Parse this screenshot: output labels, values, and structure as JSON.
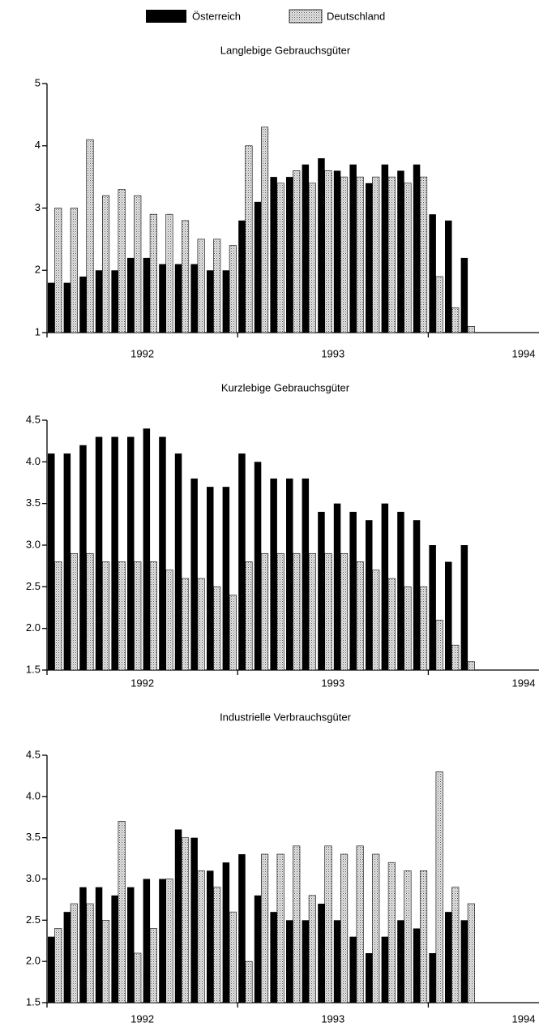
{
  "chart_data": [
    {
      "type": "bar",
      "title": "Langlebige Gebrauchsgüter",
      "categories": [
        null,
        null,
        null,
        null,
        null,
        null,
        null,
        null,
        null,
        null,
        null,
        null,
        null,
        null,
        null,
        null,
        null,
        null,
        null,
        null,
        null,
        null,
        null,
        null,
        null,
        null,
        null
      ],
      "year_labels": [
        "1992",
        "1993",
        "1994"
      ],
      "series": [
        {
          "name": "Österreich",
          "color": "#000000",
          "values": [
            1.8,
            1.8,
            1.9,
            2.0,
            2.0,
            2.2,
            2.2,
            2.1,
            2.1,
            2.1,
            2.0,
            2.0,
            2.8,
            3.1,
            3.5,
            3.5,
            3.7,
            3.8,
            3.6,
            3.7,
            3.4,
            3.7,
            3.6,
            3.7,
            2.9,
            2.8,
            2.2
          ]
        },
        {
          "name": "Deutschland",
          "color": "#c8c8c8",
          "values": [
            3.0,
            3.0,
            4.1,
            3.2,
            3.3,
            3.2,
            2.9,
            2.9,
            2.8,
            2.5,
            2.5,
            2.4,
            4.0,
            4.3,
            3.4,
            3.6,
            3.4,
            3.6,
            3.5,
            3.5,
            3.5,
            3.5,
            3.4,
            3.5,
            1.9,
            1.4,
            1.1
          ]
        }
      ],
      "ylim": [
        1,
        5
      ],
      "yticks": [
        1,
        2,
        3,
        4,
        5
      ]
    },
    {
      "type": "bar",
      "title": "Kurzlebige Gebrauchsgüter",
      "categories": [
        null,
        null,
        null,
        null,
        null,
        null,
        null,
        null,
        null,
        null,
        null,
        null,
        null,
        null,
        null,
        null,
        null,
        null,
        null,
        null,
        null,
        null,
        null,
        null,
        null,
        null,
        null
      ],
      "year_labels": [
        "1992",
        "1993",
        "1994"
      ],
      "series": [
        {
          "name": "Österreich",
          "color": "#000000",
          "values": [
            4.1,
            4.1,
            4.2,
            4.3,
            4.3,
            4.3,
            4.4,
            4.3,
            4.1,
            3.8,
            3.7,
            3.7,
            4.1,
            4.0,
            3.8,
            3.8,
            3.8,
            3.4,
            3.5,
            3.4,
            3.3,
            3.5,
            3.4,
            3.3,
            3.0,
            2.8,
            3.0
          ]
        },
        {
          "name": "Deutschland",
          "color": "#c8c8c8",
          "values": [
            2.8,
            2.9,
            2.9,
            2.8,
            2.8,
            2.8,
            2.8,
            2.7,
            2.6,
            2.6,
            2.5,
            2.4,
            2.8,
            2.9,
            2.9,
            2.9,
            2.9,
            2.9,
            2.9,
            2.8,
            2.7,
            2.6,
            2.5,
            2.5,
            2.1,
            1.8,
            1.6
          ]
        }
      ],
      "ylim": [
        1.5,
        4.5
      ],
      "yticks": [
        1.5,
        {
          "value": 2,
          "label": "2.0"
        },
        2.5,
        {
          "value": 3,
          "label": "3.0"
        },
        3.5,
        {
          "value": 4,
          "label": "4.0"
        },
        4.5
      ]
    },
    {
      "type": "bar",
      "title": "Industrielle Verbrauchsgüter",
      "categories": [
        null,
        null,
        null,
        null,
        null,
        null,
        null,
        null,
        null,
        null,
        null,
        null,
        null,
        null,
        null,
        null,
        null,
        null,
        null,
        null,
        null,
        null,
        null,
        null,
        null,
        null,
        null
      ],
      "year_labels": [
        "1992",
        "1993",
        "1994"
      ],
      "series": [
        {
          "name": "Österreich",
          "color": "#000000",
          "values": [
            2.3,
            2.6,
            2.9,
            2.9,
            2.8,
            2.9,
            3.0,
            3.0,
            3.6,
            3.5,
            3.1,
            3.2,
            3.3,
            2.8,
            2.6,
            2.5,
            2.5,
            2.7,
            2.5,
            2.3,
            2.1,
            2.3,
            2.5,
            2.4,
            2.1,
            2.6,
            2.5
          ]
        },
        {
          "name": "Deutschland",
          "color": "#c8c8c8",
          "values": [
            2.4,
            2.7,
            2.7,
            2.5,
            3.7,
            2.1,
            2.4,
            3.0,
            3.5,
            3.1,
            2.9,
            2.6,
            2.0,
            3.3,
            3.3,
            3.4,
            2.8,
            3.4,
            3.3,
            3.4,
            3.3,
            3.2,
            3.1,
            3.1,
            4.3,
            2.9,
            2.7
          ]
        }
      ],
      "ylim": [
        1.5,
        4.5
      ],
      "yticks": [
        1.5,
        {
          "value": 2,
          "label": "2.0"
        },
        2.5,
        {
          "value": 3,
          "label": "3.0"
        },
        3.5,
        {
          "value": 4,
          "label": "4.0"
        },
        4.5
      ]
    }
  ]
}
